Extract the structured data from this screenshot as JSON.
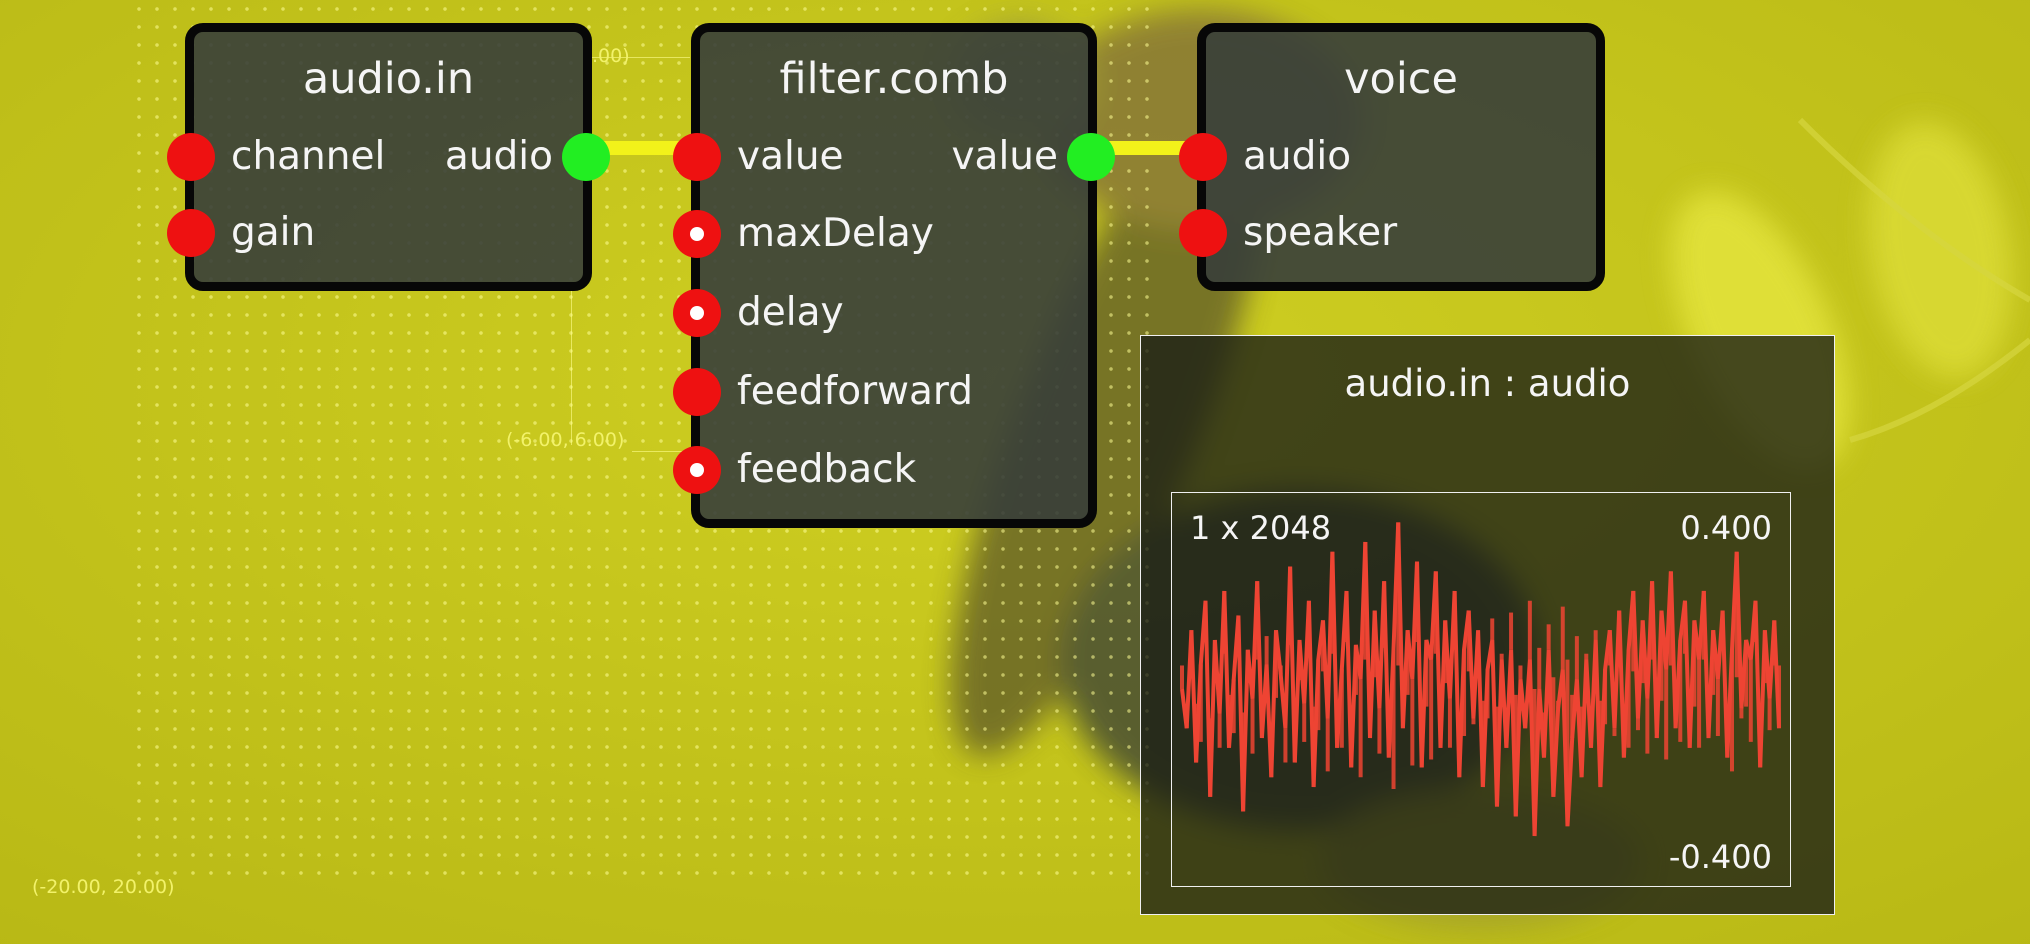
{
  "colors": {
    "background": "#c2c21a",
    "node_body": "#373e3a",
    "node_border": "#070707",
    "port_unconnected": "#ee1111",
    "port_connected": "#22ee22",
    "wire": "#f2f21a",
    "signal": "#ee4433"
  },
  "canvas": {
    "coord_top": ".00)",
    "coord_mid": "(-6.00, 6.00)",
    "coord_bottom": "(-20.00, 20.00)"
  },
  "nodes": {
    "audio_in": {
      "title": "audio.in",
      "inputs": [
        {
          "label": "channel",
          "icon": "red-port"
        },
        {
          "label": "gain",
          "icon": "red-port"
        }
      ],
      "outputs": [
        {
          "label": "audio",
          "icon": "green-port-connected"
        }
      ]
    },
    "filter_comb": {
      "title": "filter.comb",
      "inputs": [
        {
          "label": "value",
          "icon": "red-port"
        },
        {
          "label": "maxDelay",
          "icon": "red-port-dotted"
        },
        {
          "label": "delay",
          "icon": "red-port-dotted"
        },
        {
          "label": "feedforward",
          "icon": "red-port"
        },
        {
          "label": "feedback",
          "icon": "red-port-dotted"
        }
      ],
      "outputs": [
        {
          "label": "value",
          "icon": "green-port-connected"
        }
      ]
    },
    "voice": {
      "title": "voice",
      "inputs": [
        {
          "label": "audio",
          "icon": "red-port"
        },
        {
          "label": "speaker",
          "icon": "red-port"
        }
      ]
    }
  },
  "scope": {
    "title": "audio.in : audio",
    "dims": "1 x 2048",
    "max": "0.400",
    "min": "-0.400"
  },
  "chart_data": {
    "type": "line",
    "title": "audio.in : audio",
    "ylim": [
      -0.4,
      0.4
    ],
    "series": [
      {
        "values": [
          0.0,
          -0.08,
          0.12,
          -0.15,
          0.05,
          0.18,
          -0.22,
          0.1,
          -0.05,
          0.2,
          -0.12,
          0.02,
          0.15,
          -0.25,
          0.08,
          -0.02,
          0.22,
          -0.1,
          0.05,
          -0.18,
          0.12,
          0.03,
          -0.08,
          0.25,
          -0.15,
          0.1,
          -0.03,
          0.18,
          -0.2,
          0.06,
          0.14,
          -0.06,
          0.28,
          -0.12,
          0.04,
          0.2,
          -0.16,
          0.09,
          0.02,
          0.3,
          -0.1,
          0.16,
          -0.04,
          0.22,
          -0.14,
          0.08,
          0.34,
          -0.08,
          0.12,
          0.02,
          0.26,
          -0.16,
          0.1,
          0.06,
          0.24,
          -0.12,
          0.14,
          -0.02,
          0.2,
          -0.18,
          0.08,
          0.16,
          -0.06,
          0.12,
          -0.2,
          0.04,
          0.1,
          -0.24,
          0.06,
          -0.12,
          0.08,
          -0.26,
          0.02,
          -0.08,
          0.06,
          -0.3,
          0.0,
          -0.14,
          0.08,
          -0.22,
          -0.04,
          0.04,
          -0.28,
          -0.1,
          0.02,
          -0.18,
          0.06,
          -0.12,
          0.1,
          -0.2,
          0.04,
          0.12,
          -0.08,
          0.16,
          -0.14,
          0.08,
          0.2,
          -0.06,
          0.14,
          -0.02,
          0.22,
          -0.1,
          0.16,
          0.04,
          0.24,
          -0.08,
          0.1,
          0.18,
          -0.12,
          0.14,
          0.06,
          0.2,
          -0.1,
          0.12,
          0.02,
          0.16,
          -0.14,
          0.08,
          0.28,
          -0.04,
          0.1,
          0.06,
          0.18,
          -0.16,
          0.12,
          -0.02,
          0.14,
          -0.08
        ]
      }
    ]
  }
}
